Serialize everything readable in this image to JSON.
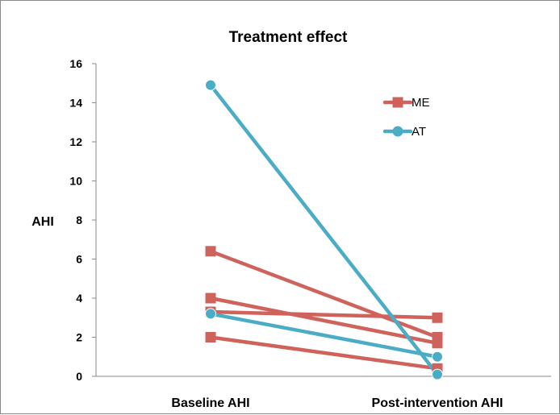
{
  "chart_data": {
    "type": "line",
    "title": "Treatment effect",
    "xlabel": "",
    "ylabel": "AHI",
    "categories": [
      "Baseline AHI",
      "Post-intervention AHI"
    ],
    "ylim": [
      0,
      16
    ],
    "yticks": [
      0,
      2,
      4,
      6,
      8,
      10,
      12,
      14,
      16
    ],
    "grid": false,
    "legend_position": "top-right",
    "series": [
      {
        "name": "ME",
        "color": "#d0625c",
        "marker": "square",
        "values": [
          6.4,
          2.0
        ]
      },
      {
        "name": "ME",
        "color": "#d0625c",
        "marker": "square",
        "values": [
          4.0,
          1.7
        ]
      },
      {
        "name": "ME",
        "color": "#d0625c",
        "marker": "square",
        "values": [
          3.3,
          3.0
        ]
      },
      {
        "name": "ME",
        "color": "#d0625c",
        "marker": "square",
        "values": [
          2.0,
          0.4
        ]
      },
      {
        "name": "AT",
        "color": "#4bacc6",
        "marker": "circle",
        "values": [
          14.9,
          0.1
        ]
      },
      {
        "name": "AT",
        "color": "#4bacc6",
        "marker": "circle",
        "values": [
          3.2,
          1.0
        ]
      }
    ],
    "legend": [
      {
        "name": "ME",
        "color": "#d0625c",
        "marker": "square"
      },
      {
        "name": "AT",
        "color": "#4bacc6",
        "marker": "circle"
      }
    ]
  }
}
